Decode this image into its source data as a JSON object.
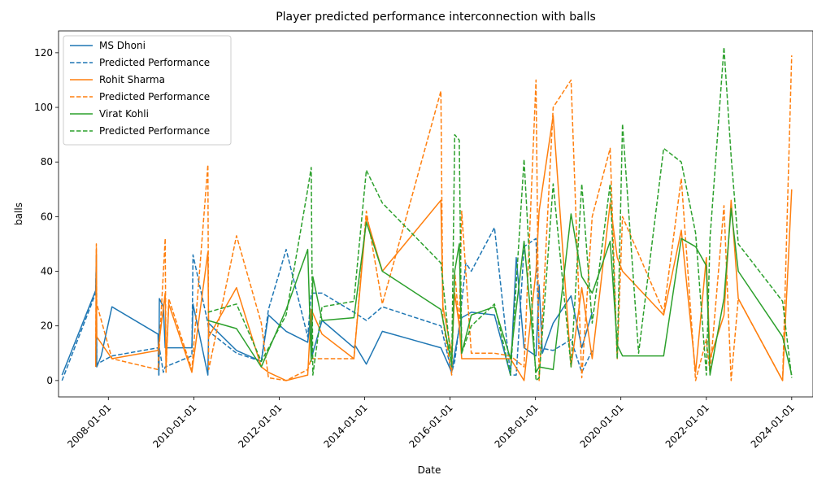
{
  "chart_data": {
    "type": "line",
    "title": "Player predicted performance interconnection with balls",
    "xlabel": "Date",
    "ylabel": "balls",
    "xlim": [
      "2006-11-01",
      "2024-07-01"
    ],
    "ylim": [
      -6,
      128
    ],
    "x_ticks": [
      "2008-01-01",
      "2010-01-01",
      "2012-01-01",
      "2014-01-01",
      "2016-01-01",
      "2018-01-01",
      "2020-01-01",
      "2022-01-01",
      "2024-01-01"
    ],
    "y_ticks": [
      0,
      20,
      40,
      60,
      80,
      100,
      120
    ],
    "grid": false,
    "legend_position": "upper-left",
    "series": [
      {
        "name": "MS Dhoni",
        "color": "#1f77b4",
        "dash": "solid",
        "points": [
          [
            "2006-12-01",
            2
          ],
          [
            "2007-09-15",
            33
          ],
          [
            "2007-09-20",
            46
          ],
          [
            "2007-09-24",
            5
          ],
          [
            "2007-11-01",
            9
          ],
          [
            "2008-02-01",
            27
          ],
          [
            "2009-03-01",
            17
          ],
          [
            "2009-03-08",
            2
          ],
          [
            "2009-03-12",
            30
          ],
          [
            "2009-04-15",
            27
          ],
          [
            "2009-05-01",
            12
          ],
          [
            "2009-12-15",
            12
          ],
          [
            "2009-12-25",
            28
          ],
          [
            "2010-05-01",
            2
          ],
          [
            "2010-05-08",
            21
          ],
          [
            "2011-01-01",
            11
          ],
          [
            "2011-08-01",
            7
          ],
          [
            "2011-10-01",
            24
          ],
          [
            "2012-03-01",
            18
          ],
          [
            "2012-09-01",
            14
          ],
          [
            "2012-10-01",
            25
          ],
          [
            "2012-10-08",
            9
          ],
          [
            "2013-01-01",
            22
          ],
          [
            "2013-10-01",
            12
          ],
          [
            "2013-10-10",
            13
          ],
          [
            "2014-01-15",
            6
          ],
          [
            "2014-06-01",
            18
          ],
          [
            "2015-10-15",
            12
          ],
          [
            "2016-01-15",
            3
          ],
          [
            "2016-02-10",
            10
          ],
          [
            "2016-03-20",
            19
          ],
          [
            "2016-04-10",
            23
          ],
          [
            "2016-07-01",
            25
          ],
          [
            "2017-01-15",
            24
          ],
          [
            "2017-06-01",
            2
          ],
          [
            "2017-07-20",
            45
          ],
          [
            "2017-09-25",
            12
          ],
          [
            "2018-01-05",
            9
          ],
          [
            "2018-02-01",
            35
          ],
          [
            "2018-03-01",
            10
          ],
          [
            "2018-06-01",
            21
          ],
          [
            "2018-11-01",
            31
          ],
          [
            "2019-02-01",
            12
          ],
          [
            "2019-05-01",
            25
          ]
        ]
      },
      {
        "name": "Predicted Performance",
        "color": "#1f77b4",
        "dash": "dashed",
        "points": [
          [
            "2006-12-01",
            0
          ],
          [
            "2007-09-15",
            32
          ],
          [
            "2007-09-20",
            44
          ],
          [
            "2007-09-24",
            6
          ],
          [
            "2008-02-01",
            9
          ],
          [
            "2009-03-01",
            12
          ],
          [
            "2009-03-08",
            2
          ],
          [
            "2009-03-12",
            12
          ],
          [
            "2009-04-15",
            3
          ],
          [
            "2009-05-01",
            5
          ],
          [
            "2009-12-15",
            9
          ],
          [
            "2009-12-25",
            46
          ],
          [
            "2010-05-01",
            21
          ],
          [
            "2010-05-08",
            18
          ],
          [
            "2011-01-01",
            10
          ],
          [
            "2011-08-01",
            7
          ],
          [
            "2011-10-01",
            26
          ],
          [
            "2012-03-01",
            48
          ],
          [
            "2012-09-01",
            16
          ],
          [
            "2012-10-01",
            32
          ],
          [
            "2013-01-01",
            32
          ],
          [
            "2013-10-01",
            25
          ],
          [
            "2014-01-15",
            22
          ],
          [
            "2014-06-01",
            27
          ],
          [
            "2015-10-15",
            20
          ],
          [
            "2016-01-15",
            3
          ],
          [
            "2016-02-10",
            7
          ],
          [
            "2016-03-20",
            20
          ],
          [
            "2016-05-15",
            43
          ],
          [
            "2016-07-01",
            40
          ],
          [
            "2017-01-15",
            56
          ],
          [
            "2017-06-01",
            2
          ],
          [
            "2017-07-20",
            2
          ],
          [
            "2017-09-25",
            49
          ],
          [
            "2018-01-05",
            52
          ],
          [
            "2018-02-01",
            12
          ],
          [
            "2018-06-01",
            11
          ],
          [
            "2018-11-01",
            15
          ],
          [
            "2019-02-01",
            3
          ],
          [
            "2019-05-01",
            11
          ]
        ]
      },
      {
        "name": "Rohit Sharma",
        "color": "#ff7f0e",
        "dash": "solid",
        "points": [
          [
            "2007-09-15",
            5
          ],
          [
            "2007-09-20",
            48
          ],
          [
            "2007-09-24",
            16
          ],
          [
            "2008-02-01",
            8
          ],
          [
            "2009-03-01",
            11
          ],
          [
            "2009-05-01",
            32
          ],
          [
            "2009-05-08",
            5
          ],
          [
            "2009-06-01",
            28
          ],
          [
            "2009-12-15",
            3
          ],
          [
            "2010-05-01",
            47
          ],
          [
            "2010-05-08",
            16
          ],
          [
            "2011-01-01",
            34
          ],
          [
            "2011-08-01",
            5
          ],
          [
            "2011-10-01",
            3
          ],
          [
            "2012-03-01",
            0
          ],
          [
            "2012-09-01",
            2
          ],
          [
            "2012-10-01",
            26
          ],
          [
            "2013-01-01",
            17
          ],
          [
            "2013-10-01",
            8
          ],
          [
            "2014-01-15",
            60
          ],
          [
            "2014-06-01",
            40
          ],
          [
            "2015-10-15",
            66
          ],
          [
            "2015-11-01",
            27
          ],
          [
            "2016-01-15",
            10
          ],
          [
            "2016-02-10",
            32
          ],
          [
            "2016-03-20",
            20
          ],
          [
            "2016-04-10",
            8
          ],
          [
            "2016-07-01",
            8
          ],
          [
            "2017-01-15",
            8
          ],
          [
            "2017-06-01",
            8
          ],
          [
            "2017-09-25",
            0
          ],
          [
            "2018-01-05",
            40
          ],
          [
            "2018-02-01",
            62
          ],
          [
            "2018-06-01",
            97
          ],
          [
            "2018-11-01",
            5
          ],
          [
            "2019-02-01",
            34
          ],
          [
            "2019-05-01",
            8
          ],
          [
            "2019-10-01",
            65
          ],
          [
            "2019-12-01",
            45
          ],
          [
            "2020-01-15",
            40
          ],
          [
            "2021-01-01",
            24
          ],
          [
            "2021-06-01",
            55
          ],
          [
            "2021-10-01",
            3
          ],
          [
            "2022-01-01",
            45
          ],
          [
            "2022-02-01",
            8
          ],
          [
            "2022-06-01",
            24
          ],
          [
            "2022-08-01",
            66
          ],
          [
            "2022-10-01",
            30
          ],
          [
            "2023-10-15",
            0
          ],
          [
            "2024-01-01",
            70
          ]
        ]
      },
      {
        "name": "Predicted Performance",
        "color": "#ff7f0e",
        "dash": "dashed",
        "points": [
          [
            "2007-09-15",
            6
          ],
          [
            "2007-09-20",
            50
          ],
          [
            "2007-09-24",
            28
          ],
          [
            "2008-02-01",
            8
          ],
          [
            "2009-03-01",
            4
          ],
          [
            "2009-05-01",
            52
          ],
          [
            "2009-05-08",
            3
          ],
          [
            "2009-06-01",
            30
          ],
          [
            "2009-12-15",
            4
          ],
          [
            "2010-05-01",
            79
          ],
          [
            "2010-05-08",
            4
          ],
          [
            "2011-01-01",
            53
          ],
          [
            "2011-08-01",
            21
          ],
          [
            "2011-10-01",
            1
          ],
          [
            "2012-03-01",
            0
          ],
          [
            "2012-09-01",
            4
          ],
          [
            "2012-10-01",
            8
          ],
          [
            "2013-01-01",
            8
          ],
          [
            "2013-10-01",
            8
          ],
          [
            "2014-01-15",
            62
          ],
          [
            "2014-06-01",
            28
          ],
          [
            "2015-10-15",
            106
          ],
          [
            "2015-11-01",
            22
          ],
          [
            "2016-01-15",
            2
          ],
          [
            "2016-02-10",
            40
          ],
          [
            "2016-03-20",
            20
          ],
          [
            "2016-04-10",
            62
          ],
          [
            "2016-07-01",
            10
          ],
          [
            "2017-01-15",
            10
          ],
          [
            "2017-06-01",
            9
          ],
          [
            "2017-09-25",
            5
          ],
          [
            "2018-01-05",
            110
          ],
          [
            "2018-02-01",
            0
          ],
          [
            "2018-06-01",
            100
          ],
          [
            "2018-11-01",
            110
          ],
          [
            "2019-02-01",
            1
          ],
          [
            "2019-05-01",
            60
          ],
          [
            "2019-10-01",
            85
          ],
          [
            "2019-12-01",
            8
          ],
          [
            "2020-01-15",
            60
          ],
          [
            "2021-01-01",
            25
          ],
          [
            "2021-06-01",
            74
          ],
          [
            "2021-10-01",
            0
          ],
          [
            "2022-01-01",
            15
          ],
          [
            "2022-02-01",
            3
          ],
          [
            "2022-06-01",
            64
          ],
          [
            "2022-08-01",
            0
          ],
          [
            "2022-10-01",
            30
          ],
          [
            "2023-10-15",
            0
          ],
          [
            "2024-01-01",
            119
          ]
        ]
      },
      {
        "name": "Virat Kohli",
        "color": "#2ca02c",
        "dash": "solid",
        "points": [
          [
            "2010-05-01",
            22
          ],
          [
            "2011-01-01",
            19
          ],
          [
            "2011-08-01",
            5
          ],
          [
            "2012-03-01",
            26
          ],
          [
            "2012-09-01",
            48
          ],
          [
            "2012-10-01",
            7
          ],
          [
            "2012-10-15",
            38
          ],
          [
            "2013-01-01",
            22
          ],
          [
            "2013-10-01",
            23
          ],
          [
            "2014-01-15",
            58
          ],
          [
            "2014-06-01",
            40
          ],
          [
            "2015-10-15",
            26
          ],
          [
            "2016-01-15",
            6
          ],
          [
            "2016-02-10",
            40
          ],
          [
            "2016-03-20",
            50
          ],
          [
            "2016-04-10",
            10
          ],
          [
            "2016-07-01",
            24
          ],
          [
            "2017-01-15",
            27
          ],
          [
            "2017-06-01",
            8
          ],
          [
            "2017-09-25",
            51
          ],
          [
            "2018-01-05",
            3
          ],
          [
            "2018-02-01",
            5
          ],
          [
            "2018-06-01",
            4
          ],
          [
            "2018-11-01",
            61
          ],
          [
            "2019-02-01",
            38
          ],
          [
            "2019-05-01",
            32
          ],
          [
            "2019-10-01",
            51
          ],
          [
            "2019-12-01",
            13
          ],
          [
            "2020-01-15",
            9
          ],
          [
            "2020-06-01",
            9
          ],
          [
            "2021-01-01",
            9
          ],
          [
            "2021-06-01",
            52
          ],
          [
            "2021-10-01",
            49
          ],
          [
            "2022-01-01",
            42
          ],
          [
            "2022-02-01",
            2
          ],
          [
            "2022-06-01",
            30
          ],
          [
            "2022-08-01",
            63
          ],
          [
            "2022-10-01",
            40
          ],
          [
            "2023-10-15",
            16
          ],
          [
            "2024-01-01",
            2
          ]
        ]
      },
      {
        "name": "Predicted Performance",
        "color": "#2ca02c",
        "dash": "dashed",
        "points": [
          [
            "2010-05-01",
            25
          ],
          [
            "2011-01-01",
            28
          ],
          [
            "2011-08-01",
            7
          ],
          [
            "2012-03-01",
            24
          ],
          [
            "2012-09-01",
            70
          ],
          [
            "2012-10-01",
            78
          ],
          [
            "2012-10-15",
            2
          ],
          [
            "2013-01-01",
            27
          ],
          [
            "2013-10-01",
            29
          ],
          [
            "2014-01-15",
            77
          ],
          [
            "2014-06-01",
            65
          ],
          [
            "2015-10-15",
            43
          ],
          [
            "2016-01-15",
            5
          ],
          [
            "2016-02-10",
            90
          ],
          [
            "2016-03-20",
            88
          ],
          [
            "2016-04-10",
            10
          ],
          [
            "2016-07-01",
            20
          ],
          [
            "2017-01-15",
            28
          ],
          [
            "2017-06-01",
            2
          ],
          [
            "2017-09-25",
            81
          ],
          [
            "2018-01-05",
            0
          ],
          [
            "2018-02-01",
            1
          ],
          [
            "2018-06-01",
            72
          ],
          [
            "2018-11-01",
            5
          ],
          [
            "2019-02-01",
            72
          ],
          [
            "2019-05-01",
            21
          ],
          [
            "2019-10-01",
            72
          ],
          [
            "2019-12-01",
            8
          ],
          [
            "2020-01-15",
            94
          ],
          [
            "2020-06-01",
            10
          ],
          [
            "2021-01-01",
            85
          ],
          [
            "2021-06-01",
            80
          ],
          [
            "2021-10-01",
            54
          ],
          [
            "2022-01-01",
            2
          ],
          [
            "2022-02-01",
            52
          ],
          [
            "2022-06-01",
            122
          ],
          [
            "2022-08-01",
            82
          ],
          [
            "2022-10-01",
            50
          ],
          [
            "2023-10-15",
            29
          ],
          [
            "2024-01-01",
            1
          ]
        ]
      }
    ]
  }
}
